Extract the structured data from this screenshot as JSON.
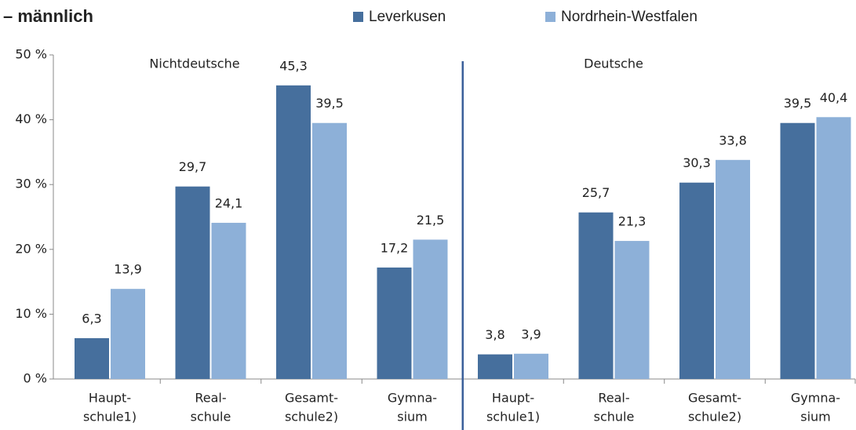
{
  "chart_data": {
    "type": "bar",
    "title": "– männlich",
    "group_labels": [
      "Nichtdeutsche",
      "Deutsche"
    ],
    "categories": [
      [
        "Haupt-",
        "schule1)"
      ],
      [
        "Real-",
        "schule"
      ],
      [
        "Gesamt-",
        "schule2)"
      ],
      [
        "Gymna-",
        "sium"
      ],
      [
        "Haupt-",
        "schule1)"
      ],
      [
        "Real-",
        "schule"
      ],
      [
        "Gesamt-",
        "schule2)"
      ],
      [
        "Gymna-",
        "sium"
      ]
    ],
    "series": [
      {
        "name": "Leverkusen",
        "color": "#466f9d",
        "values": [
          6.3,
          29.7,
          45.3,
          17.2,
          3.8,
          25.7,
          30.3,
          39.5
        ],
        "value_labels": [
          "6,3",
          "29,7",
          "45,3",
          "17,2",
          "3,8",
          "25,7",
          "30,3",
          "39,5"
        ]
      },
      {
        "name": "Nordrhein-Westfalen",
        "color": "#8db0d8",
        "values": [
          13.9,
          24.1,
          39.5,
          21.5,
          3.9,
          21.3,
          33.8,
          40.4
        ],
        "value_labels": [
          "13,9",
          "24,1",
          "39,5",
          "21,5",
          "3,9",
          "21,3",
          "33,8",
          "40,4"
        ]
      }
    ],
    "ylim": [
      0,
      50
    ],
    "yticks": [
      {
        "value": 0,
        "label": "0 %"
      },
      {
        "value": 10,
        "label": "10 %"
      },
      {
        "value": 20,
        "label": "20 %"
      },
      {
        "value": 30,
        "label": "30 %"
      },
      {
        "value": 40,
        "label": "40 %"
      },
      {
        "value": 50,
        "label": "50 %"
      }
    ]
  }
}
